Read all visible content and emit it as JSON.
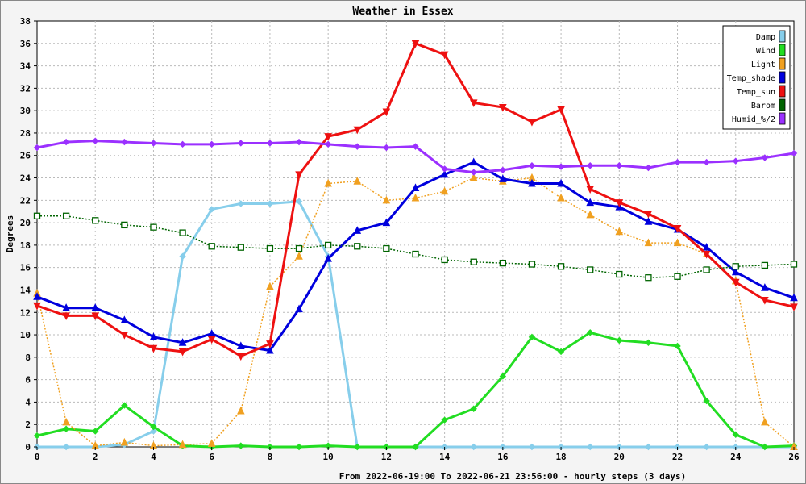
{
  "chart_data": {
    "type": "line",
    "title": "Weather in Essex",
    "xlabel": "From 2022-06-19:00 To 2022-06-21 23:56:00 - hourly steps (3 days)",
    "ylabel": "Degrees",
    "xlim": [
      0,
      26
    ],
    "ylim": [
      0,
      38
    ],
    "x_ticks": [
      0,
      2,
      4,
      6,
      8,
      10,
      12,
      14,
      16,
      18,
      20,
      22,
      24,
      26
    ],
    "y_ticks": [
      0,
      2,
      4,
      6,
      8,
      10,
      12,
      14,
      16,
      18,
      20,
      22,
      24,
      26,
      28,
      30,
      32,
      34,
      36,
      38
    ],
    "grid": true,
    "legend_position": "top-right",
    "x": [
      0,
      1,
      2,
      3,
      4,
      5,
      6,
      7,
      8,
      9,
      10,
      11,
      12,
      13,
      14,
      15,
      16,
      17,
      18,
      19,
      20,
      21,
      22,
      23,
      24,
      25,
      26
    ],
    "series": [
      {
        "name": "Damp",
        "color": "#87ceeb",
        "marker": "diamond",
        "width": 3,
        "dotted": false,
        "values": [
          0,
          0,
          0,
          0.2,
          1.4,
          17,
          21.2,
          21.7,
          21.7,
          21.9,
          17,
          0,
          0,
          0,
          0,
          0,
          0,
          0,
          0,
          0,
          0,
          0,
          0,
          0,
          0,
          0,
          0
        ]
      },
      {
        "name": "Wind",
        "color": "#22dd22",
        "marker": "diamond",
        "width": 3,
        "dotted": false,
        "values": [
          1,
          1.6,
          1.4,
          3.7,
          1.8,
          0.1,
          0,
          0.1,
          0,
          0,
          0.1,
          0,
          0,
          0,
          2.4,
          3.4,
          6.3,
          9.8,
          8.5,
          10.2,
          9.5,
          9.3,
          9,
          4.1,
          1.1,
          0,
          0.1
        ]
      },
      {
        "name": "Light",
        "color": "#f0a020",
        "marker": "triangle-up",
        "width": 1.5,
        "dotted": true,
        "values": [
          13.7,
          2.2,
          0.1,
          0.4,
          0.1,
          0.2,
          0.3,
          3.2,
          14.3,
          17,
          23.5,
          23.7,
          22,
          22.2,
          22.8,
          24,
          23.7,
          24,
          22.2,
          20.7,
          19.2,
          18.2,
          18.2,
          17.2,
          14.8,
          2.2,
          0
        ]
      },
      {
        "name": "Temp_shade",
        "color": "#0000dd",
        "marker": "triangle-up",
        "width": 3,
        "dotted": false,
        "values": [
          13.4,
          12.4,
          12.4,
          11.3,
          9.8,
          9.3,
          10.1,
          9,
          8.6,
          12.3,
          16.8,
          19.3,
          20,
          23.1,
          24.3,
          25.4,
          23.9,
          23.5,
          23.5,
          21.8,
          21.4,
          20.1,
          19.4,
          17.8,
          15.6,
          14.2,
          13.3
        ]
      },
      {
        "name": "Temp_sun",
        "color": "#ee1111",
        "marker": "triangle-down",
        "width": 3,
        "dotted": false,
        "values": [
          12.6,
          11.7,
          11.7,
          10,
          8.8,
          8.5,
          9.6,
          8.1,
          9.2,
          24.3,
          27.7,
          28.3,
          29.9,
          36,
          35,
          30.7,
          30.3,
          29,
          30.1,
          23,
          21.8,
          20.8,
          19.5,
          17.2,
          14.7,
          13.1,
          12.5
        ]
      },
      {
        "name": "Barom",
        "color": "#006400",
        "marker": "square",
        "width": 1.5,
        "dotted": true,
        "values": [
          20.6,
          20.6,
          20.2,
          19.8,
          19.6,
          19.1,
          17.9,
          17.8,
          17.7,
          17.7,
          18,
          17.9,
          17.7,
          17.2,
          16.7,
          16.5,
          16.4,
          16.3,
          16.1,
          15.8,
          15.4,
          15.1,
          15.2,
          15.8,
          16.1,
          16.2,
          16.3
        ]
      },
      {
        "name": "Humid_%/2",
        "color": "#9b30ff",
        "marker": "diamond",
        "width": 3,
        "dotted": false,
        "values": [
          26.7,
          27.2,
          27.3,
          27.2,
          27.1,
          27,
          27,
          27.1,
          27.1,
          27.2,
          27,
          26.8,
          26.7,
          26.8,
          24.8,
          24.5,
          24.7,
          25.1,
          25,
          25.1,
          25.1,
          24.9,
          25.4,
          25.4,
          25.5,
          25.8,
          26.2
        ]
      }
    ]
  }
}
